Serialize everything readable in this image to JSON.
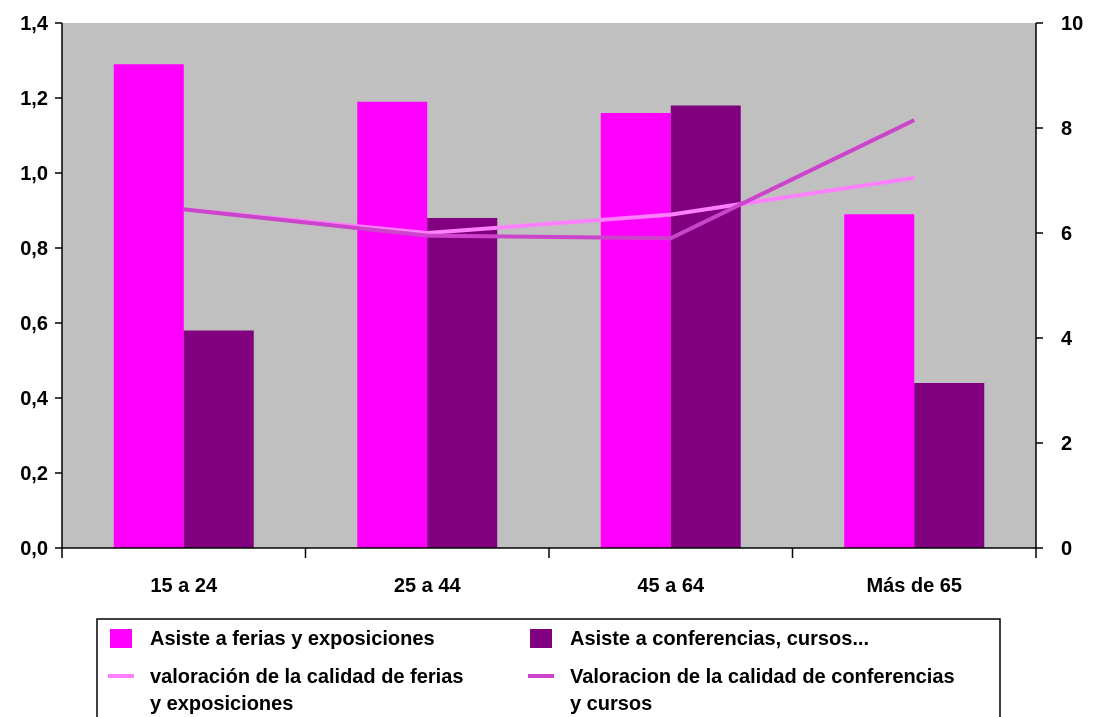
{
  "chart_data": {
    "type": "bar",
    "categories": [
      "15 a 24",
      "25 a 44",
      "45 a 64",
      "Más de 65"
    ],
    "left_axis": {
      "ylim": [
        0,
        1.4
      ],
      "ticks": [
        "0,0",
        "0,2",
        "0,4",
        "0,6",
        "0,8",
        "1,0",
        "1,2",
        "1,4"
      ]
    },
    "right_axis": {
      "ylim": [
        0,
        10
      ],
      "ticks": [
        "0",
        "2",
        "4",
        "6",
        "8",
        "10"
      ]
    },
    "bar_series": [
      {
        "name": "Asiste a ferias y exposiciones",
        "color": "#ff00ff",
        "values": [
          1.29,
          1.19,
          1.16,
          0.89
        ]
      },
      {
        "name": "Asiste a conferencias, cursos...",
        "color": "#800080",
        "values": [
          0.58,
          0.88,
          1.18,
          0.44
        ]
      }
    ],
    "line_series": [
      {
        "name_lines": [
          "valoración de la calidad de ferias",
          "y exposiciones"
        ],
        "color": "#ff80ff",
        "axis": "right",
        "values": [
          6.45,
          6.0,
          6.35,
          7.05
        ]
      },
      {
        "name_lines": [
          "Valoracion de la calidad de conferencias",
          "y cursos"
        ],
        "color": "#cc44cc",
        "axis": "right",
        "values": [
          6.45,
          5.95,
          5.9,
          8.15
        ]
      }
    ],
    "plot_background": "#c0c0c0",
    "grid": false,
    "legend_position": "bottom"
  }
}
